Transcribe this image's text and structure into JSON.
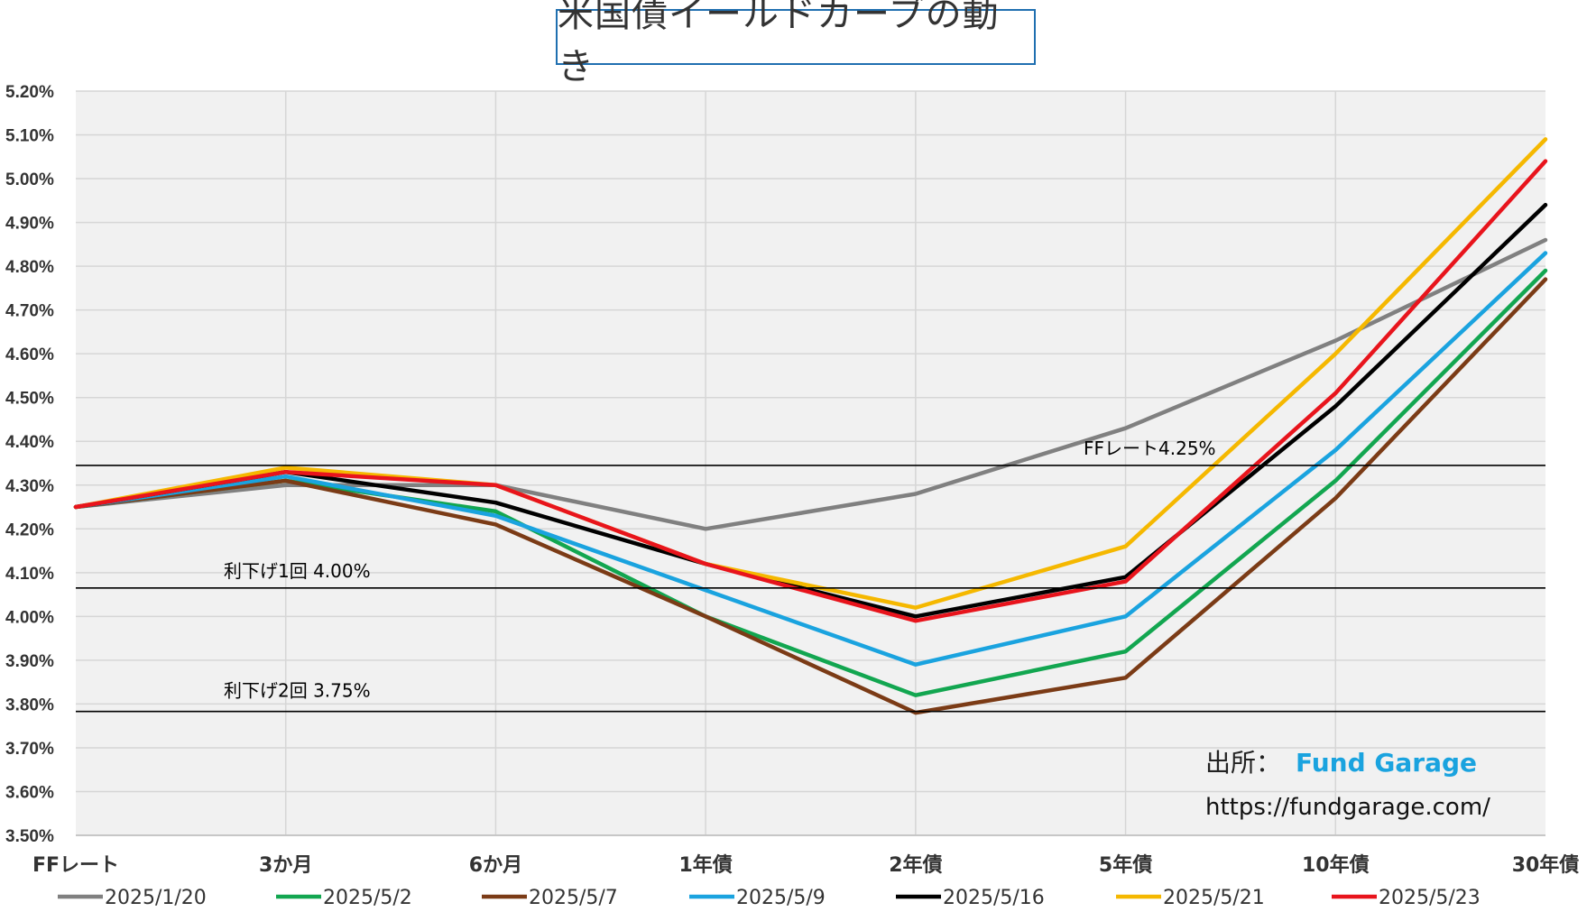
{
  "chart_data": {
    "type": "line",
    "title": "米国債イールドカーブの動き",
    "categories": [
      "FFレート",
      "3か月",
      "6か月",
      "1年債",
      "2年債",
      "5年債",
      "10年債",
      "30年債"
    ],
    "ylim": [
      3.5,
      5.2
    ],
    "ystep": 0.1,
    "ytick_labels": [
      "3.50%",
      "3.60%",
      "3.70%",
      "3.80%",
      "3.90%",
      "4.00%",
      "4.10%",
      "4.20%",
      "4.30%",
      "4.40%",
      "4.50%",
      "4.60%",
      "4.70%",
      "4.80%",
      "4.90%",
      "5.00%",
      "5.10%",
      "5.20%"
    ],
    "grid": true,
    "legend_position": "bottom",
    "series": [
      {
        "name": "2025/1/20",
        "color": "#808080",
        "values": [
          4.25,
          4.3,
          4.3,
          4.2,
          4.28,
          4.43,
          4.63,
          4.86
        ]
      },
      {
        "name": "2025/5/2",
        "color": "#12a650",
        "values": [
          4.25,
          4.31,
          4.24,
          4.0,
          3.82,
          3.92,
          4.31,
          4.79
        ]
      },
      {
        "name": "2025/5/7",
        "color": "#7b3b16",
        "values": [
          4.25,
          4.31,
          4.21,
          4.0,
          3.78,
          3.86,
          4.27,
          4.77
        ]
      },
      {
        "name": "2025/5/9",
        "color": "#1aa3df",
        "values": [
          4.25,
          4.32,
          4.23,
          4.06,
          3.89,
          4.0,
          4.38,
          4.83
        ]
      },
      {
        "name": "2025/5/16",
        "color": "#000000",
        "values": [
          4.25,
          4.33,
          4.26,
          4.12,
          4.0,
          4.09,
          4.48,
          4.94
        ]
      },
      {
        "name": "2025/5/21",
        "color": "#f5b800",
        "values": [
          4.25,
          4.34,
          4.3,
          4.12,
          4.02,
          4.16,
          4.6,
          5.09
        ]
      },
      {
        "name": "2025/5/23",
        "color": "#e8141c",
        "values": [
          4.25,
          4.33,
          4.3,
          4.12,
          3.99,
          4.08,
          4.51,
          5.04
        ]
      }
    ],
    "reference_lines": [
      {
        "label": "FFレート4.25%",
        "value": 4.345
      },
      {
        "label": "利下げ1回 4.00%",
        "value": 4.065
      },
      {
        "label": "利下げ2回 3.75%",
        "value": 3.783
      }
    ]
  },
  "source": {
    "prefix": "出所：",
    "brand": "Fund Garage",
    "url": "https://fundgarage.com/"
  }
}
